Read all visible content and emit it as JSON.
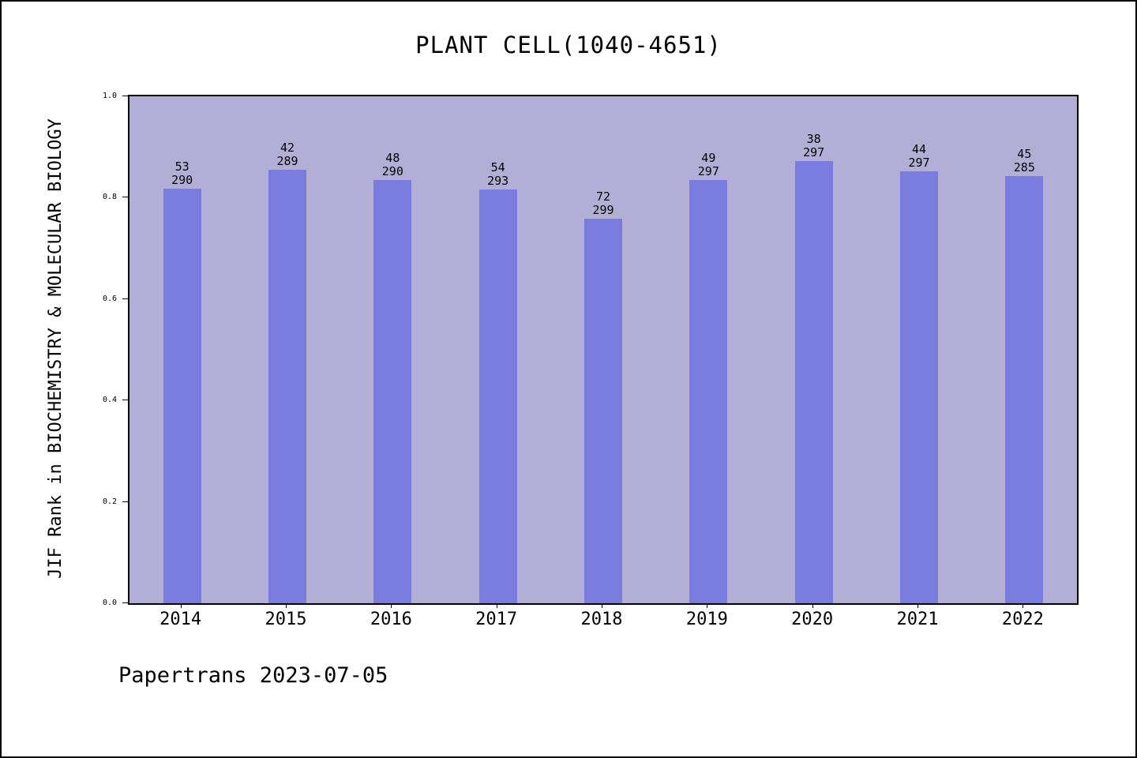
{
  "title": "PLANT CELL(1040-4651)",
  "footer": "Papertrans 2023-07-05",
  "chart_data": {
    "type": "bar",
    "title": "PLANT CELL(1040-4651)",
    "ylabel": "JIF Rank in BIOCHEMISTRY & MOLECULAR BIOLOGY",
    "xlabel": "",
    "ylim": [
      0.0,
      1.0
    ],
    "yticks": [
      "0.0",
      "0.2",
      "0.4",
      "0.6",
      "0.8",
      "1.0"
    ],
    "grid": false,
    "legend": "none",
    "categories": [
      "2014",
      "2015",
      "2016",
      "2017",
      "2018",
      "2019",
      "2020",
      "2021",
      "2022"
    ],
    "bars": [
      {
        "year": "2014",
        "rank": 53,
        "total": 290,
        "value": 0.8172
      },
      {
        "year": "2015",
        "rank": 42,
        "total": 289,
        "value": 0.8547
      },
      {
        "year": "2016",
        "rank": 48,
        "total": 290,
        "value": 0.8345
      },
      {
        "year": "2017",
        "rank": 54,
        "total": 293,
        "value": 0.8157
      },
      {
        "year": "2018",
        "rank": 72,
        "total": 299,
        "value": 0.7592
      },
      {
        "year": "2019",
        "rank": 49,
        "total": 297,
        "value": 0.835
      },
      {
        "year": "2020",
        "rank": 38,
        "total": 297,
        "value": 0.8721
      },
      {
        "year": "2021",
        "rank": 44,
        "total": 297,
        "value": 0.8519
      },
      {
        "year": "2022",
        "rank": 45,
        "total": 285,
        "value": 0.8421
      }
    ],
    "colors": {
      "bar": "#7b7ce0",
      "plot_bg": "#b3aed6",
      "axis": "#000000",
      "text": "#000000",
      "page_bg": "#ffffff"
    }
  }
}
